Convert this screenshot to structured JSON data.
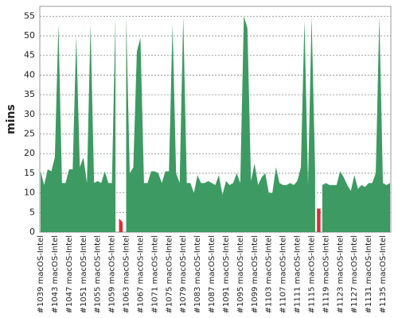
{
  "chart_data": {
    "type": "area",
    "y_label": "mins",
    "categories": [
      "#1039 macOS-Intel",
      null,
      null,
      null,
      "#1043 macOS-Intel",
      null,
      null,
      null,
      "#1047 macOS-Intel",
      null,
      null,
      null,
      "#1051 macOS-Intel",
      null,
      null,
      null,
      "#1055 macOS-Intel",
      null,
      null,
      null,
      "#1059 macOS-Intel",
      null,
      null,
      null,
      "#1063 macOS-Intel",
      null,
      null,
      null,
      "#1067 macOS-Intel",
      null,
      null,
      null,
      "#1071 macOS-Intel",
      null,
      null,
      null,
      "#1075 macOS-Intel",
      null,
      null,
      null,
      "#1079 macOS-Intel",
      null,
      null,
      null,
      "#1083 macOS-Intel",
      null,
      null,
      null,
      "#1087 macOS-Intel",
      null,
      null,
      null,
      "#1091 macOS-Intel",
      null,
      null,
      null,
      "#1095 macOS-Intel",
      null,
      null,
      null,
      "#1099 macOS-Intel",
      null,
      null,
      null,
      "#1103 macOS-Intel",
      null,
      null,
      null,
      "#1107 macOS-Intel",
      null,
      null,
      null,
      "#1111 macOS-Intel",
      null,
      null,
      null,
      "#1115 macOS-Intel",
      null,
      null,
      null,
      "#1119 macOS-Intel",
      null,
      null,
      null,
      "#1123 macOS-Intel",
      null,
      null,
      null,
      "#1127 macOS-Intel",
      null,
      null,
      null,
      "#1131 macOS-Intel",
      null,
      null,
      null,
      "#1135 macOS-Intel",
      null,
      null
    ],
    "series": [
      {
        "color": "#3d9a62",
        "values": [
          15.5,
          12,
          16,
          15.5,
          19,
          53,
          12.5,
          12.5,
          16,
          16,
          50,
          16.5,
          19,
          12.5,
          53,
          12.5,
          13,
          12.5,
          15.5,
          12.5,
          12.5,
          55,
          null,
          null,
          55,
          15,
          16.5,
          46,
          49.5,
          12.5,
          12.5,
          15.5,
          15.5,
          15,
          12.5,
          15.5,
          15.5,
          53,
          15,
          12.5,
          55,
          12.5,
          12.5,
          10,
          14.5,
          12.5,
          12.5,
          13,
          12.5,
          12,
          14.5,
          9.5,
          13,
          12,
          12.5,
          15,
          12.5,
          55,
          52,
          13,
          17.5,
          12,
          14,
          15,
          10,
          10,
          16.5,
          12.5,
          12,
          12,
          12.5,
          12,
          13,
          16.5,
          54,
          12,
          55,
          15,
          null,
          12,
          12.5,
          12,
          12,
          12,
          15.5,
          14,
          12,
          10.5,
          14.5,
          11,
          12,
          11.5,
          12.5,
          12.5,
          15,
          55,
          12.5,
          12,
          12.5
        ]
      },
      {
        "color": "#d93030",
        "values": [
          null,
          null,
          null,
          null,
          null,
          null,
          null,
          null,
          null,
          null,
          null,
          null,
          null,
          null,
          null,
          null,
          null,
          null,
          null,
          null,
          null,
          null,
          3.5,
          2.5,
          null,
          null,
          null,
          null,
          null,
          null,
          null,
          null,
          null,
          null,
          null,
          null,
          null,
          null,
          null,
          null,
          null,
          null,
          null,
          null,
          null,
          null,
          null,
          null,
          null,
          null,
          null,
          null,
          null,
          null,
          null,
          null,
          null,
          null,
          null,
          null,
          null,
          null,
          null,
          null,
          null,
          null,
          null,
          null,
          null,
          null,
          null,
          null,
          null,
          null,
          null,
          null,
          null,
          null,
          6,
          null,
          null,
          null,
          null,
          null,
          null,
          null,
          null,
          null,
          null,
          null,
          null,
          null,
          null,
          null,
          null,
          null,
          null,
          null,
          null
        ]
      }
    ],
    "ylim": [
      0,
      57.5
    ],
    "yticks": [
      0,
      5,
      10,
      15,
      20,
      25,
      30,
      35,
      40,
      45,
      50,
      55
    ],
    "grid": true
  }
}
